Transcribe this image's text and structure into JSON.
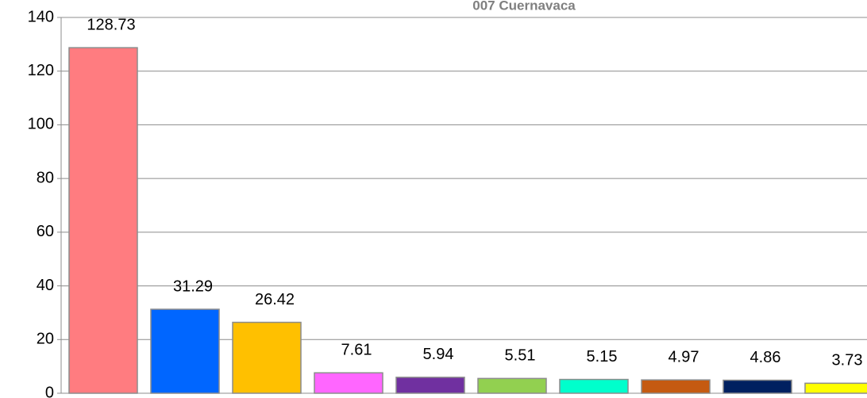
{
  "chart_data": {
    "type": "bar",
    "title": "007 Cuernavaca",
    "values": [
      128.73,
      31.29,
      26.42,
      7.61,
      5.94,
      5.51,
      5.15,
      4.97,
      4.86,
      3.73
    ],
    "colors": [
      "#ff7c80",
      "#0066ff",
      "#ffc000",
      "#ff66ff",
      "#7030a0",
      "#92d050",
      "#00ffcc",
      "#c55a11",
      "#002060",
      "#ffff00"
    ],
    "ylim": [
      0,
      140
    ],
    "yticks": [
      0,
      20,
      40,
      60,
      80,
      100,
      120,
      140
    ],
    "grid": true
  }
}
